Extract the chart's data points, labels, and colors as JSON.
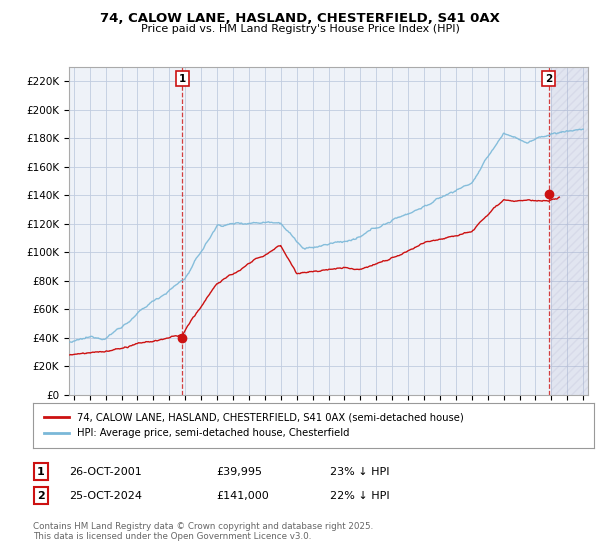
{
  "title": "74, CALOW LANE, HASLAND, CHESTERFIELD, S41 0AX",
  "subtitle": "Price paid vs. HM Land Registry's House Price Index (HPI)",
  "ylabel_ticks": [
    "£0",
    "£20K",
    "£40K",
    "£60K",
    "£80K",
    "£100K",
    "£120K",
    "£140K",
    "£160K",
    "£180K",
    "£200K",
    "£220K"
  ],
  "ytick_values": [
    0,
    20000,
    40000,
    60000,
    80000,
    100000,
    120000,
    140000,
    160000,
    180000,
    200000,
    220000
  ],
  "ylim": [
    0,
    230000
  ],
  "xlim_start": 1994.7,
  "xlim_end": 2027.3,
  "hpi_color": "#7ab8d8",
  "price_color": "#cc1111",
  "point1_x": 2001.82,
  "point1_y": 39995,
  "point2_x": 2024.82,
  "point2_y": 141000,
  "legend_line1": "74, CALOW LANE, HASLAND, CHESTERFIELD, S41 0AX (semi-detached house)",
  "legend_line2": "HPI: Average price, semi-detached house, Chesterfield",
  "table_row1": [
    "1",
    "26-OCT-2001",
    "£39,995",
    "23% ↓ HPI"
  ],
  "table_row2": [
    "2",
    "25-OCT-2024",
    "£141,000",
    "22% ↓ HPI"
  ],
  "footer": "Contains HM Land Registry data © Crown copyright and database right 2025.\nThis data is licensed under the Open Government Licence v3.0.",
  "hatch_start": 2025.0,
  "plot_bg_color": "#eef2f8"
}
